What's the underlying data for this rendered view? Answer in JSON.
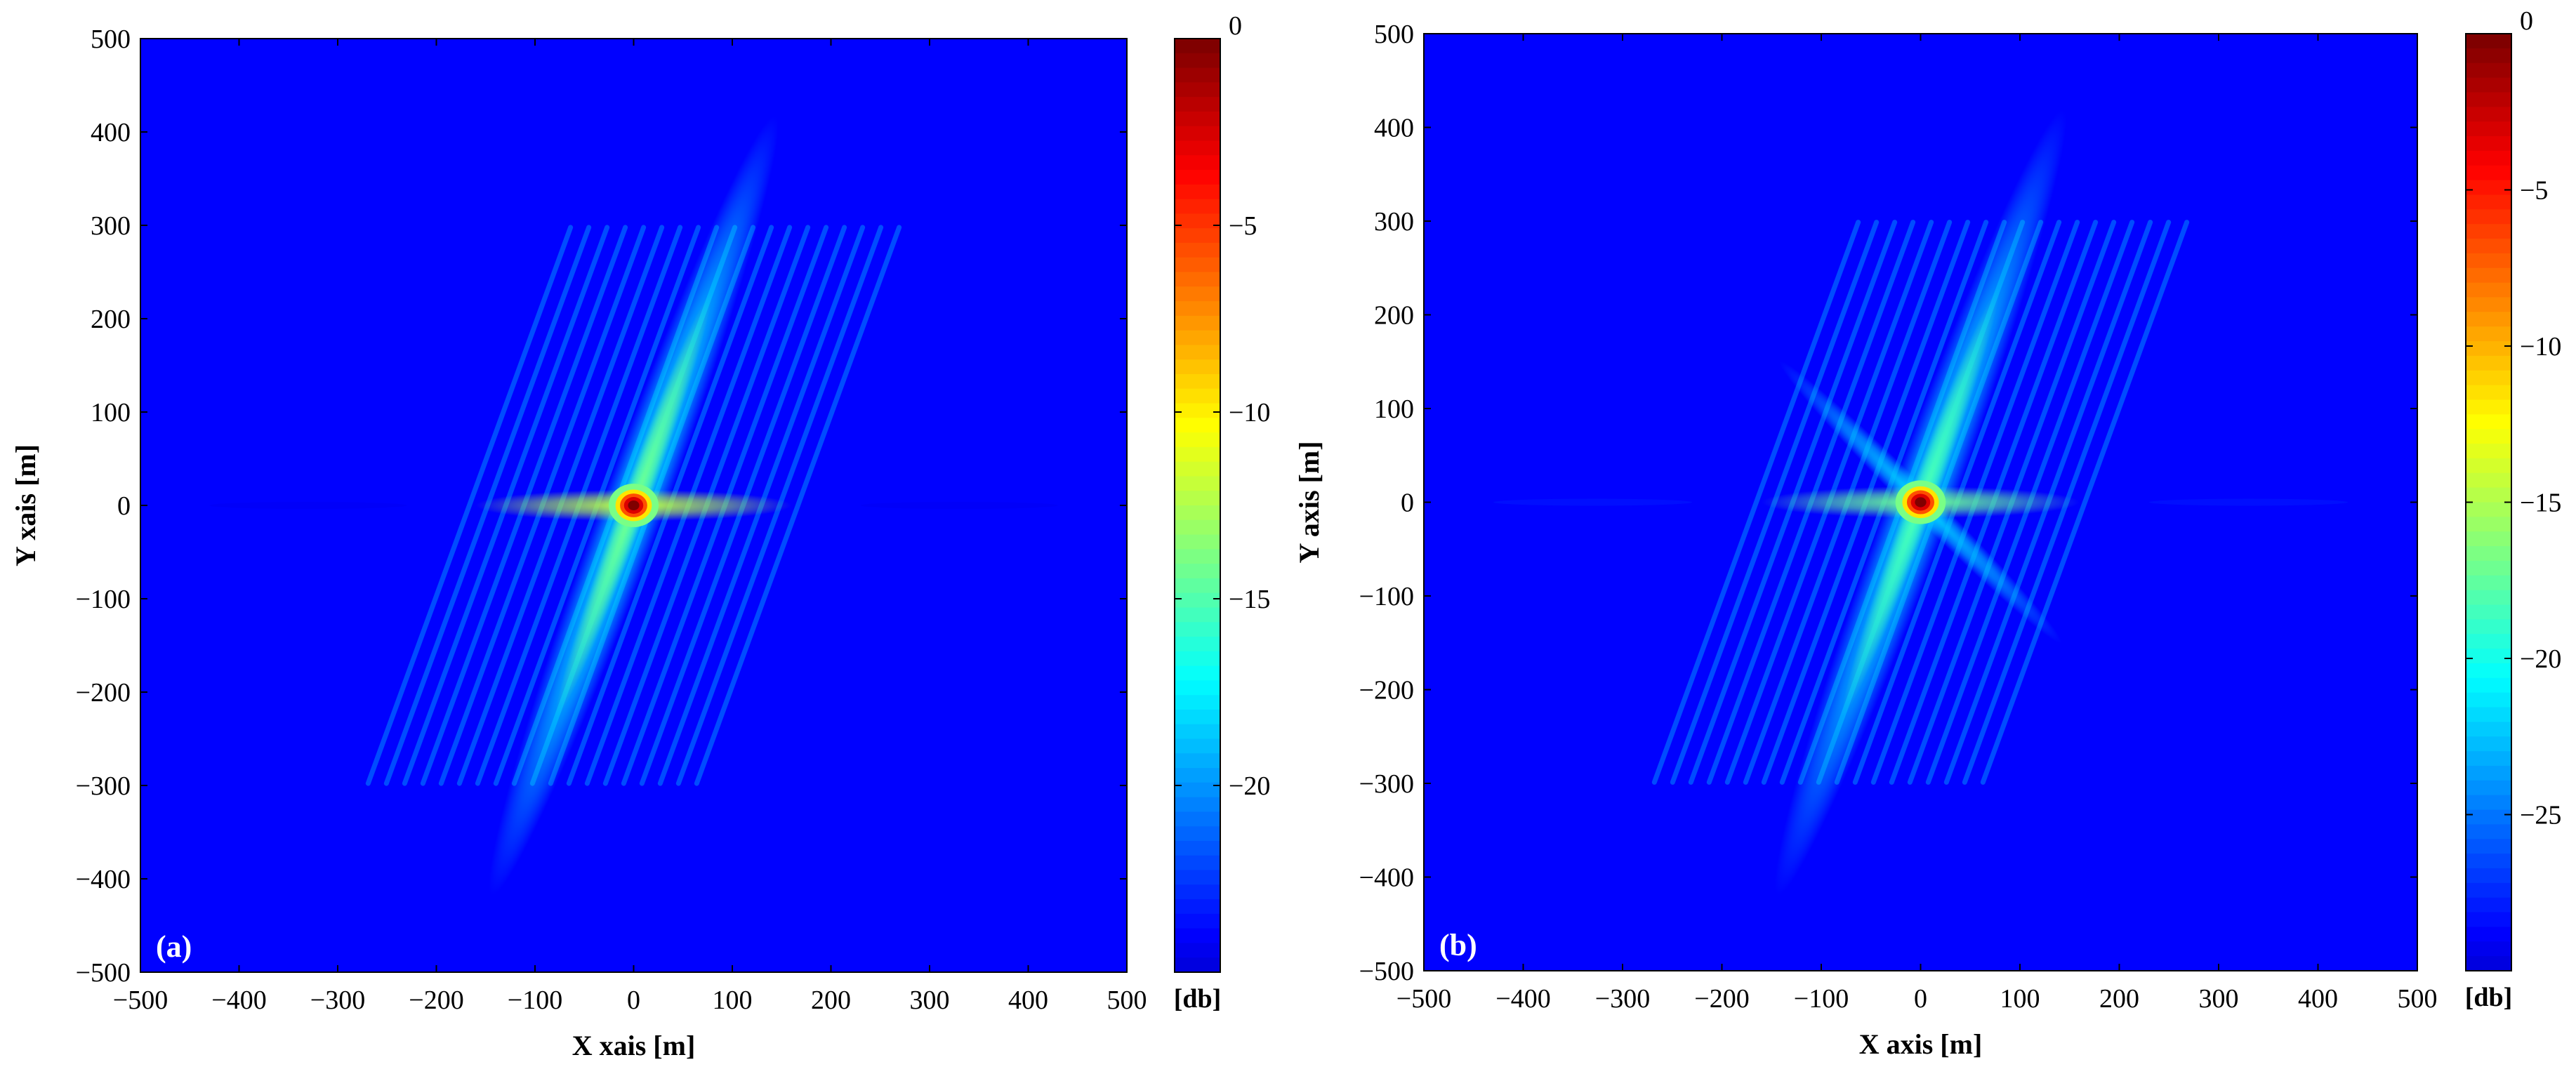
{
  "chart_data": [
    {
      "type": "heatmap",
      "panel_label": "(a)",
      "xlabel": "X xais [m]",
      "ylabel": "Y xais [m]",
      "xlim": [
        -500,
        500
      ],
      "ylim": [
        -500,
        500
      ],
      "xticks": [
        -500,
        -400,
        -300,
        -200,
        -100,
        0,
        100,
        200,
        300,
        400,
        500
      ],
      "yticks": [
        500,
        400,
        300,
        200,
        100,
        0,
        -100,
        -200,
        -300,
        -400,
        -500
      ],
      "colorbar": {
        "unit": "[db]",
        "range": [
          -25,
          0
        ],
        "ticks": [
          0,
          -5,
          -10,
          -15,
          -20
        ],
        "colormap": "jet"
      },
      "peak": {
        "x": 0,
        "y": 0,
        "value_db": 0
      },
      "features": {
        "horizontal_sidelobe_db": -12,
        "horizontal_sidelobe_extent": [
          -160,
          160
        ],
        "oblique_sidelobe_db": -17,
        "oblique_sidelobe_slope_deg": 70,
        "far_horizontal_ghost_db": -24,
        "grid": false
      }
    },
    {
      "type": "heatmap",
      "panel_label": "(b)",
      "xlabel": "X axis [m]",
      "ylabel": "Y axis [m]",
      "xlim": [
        -500,
        500
      ],
      "ylim": [
        -500,
        500
      ],
      "xticks": [
        -500,
        -400,
        -300,
        -200,
        -100,
        0,
        100,
        200,
        300,
        400,
        500
      ],
      "yticks": [
        500,
        400,
        300,
        200,
        100,
        0,
        -100,
        -200,
        -300,
        -400,
        -500
      ],
      "colorbar": {
        "unit": "[db]",
        "range": [
          -30,
          0
        ],
        "ticks": [
          0,
          -5,
          -10,
          -15,
          -20,
          -25
        ],
        "colormap": "jet"
      },
      "peak": {
        "x": 0,
        "y": 0,
        "value_db": 0
      },
      "features": {
        "horizontal_sidelobe_db": -17,
        "horizontal_sidelobe_extent": [
          -160,
          160
        ],
        "oblique_sidelobe_db": -21,
        "oblique_sidelobe_slope_deg": 70,
        "cross_sidelobe_db": -22,
        "cross_sidelobe_slope_deg": -45,
        "far_horizontal_ghost_db": -28,
        "grid": false
      }
    }
  ]
}
